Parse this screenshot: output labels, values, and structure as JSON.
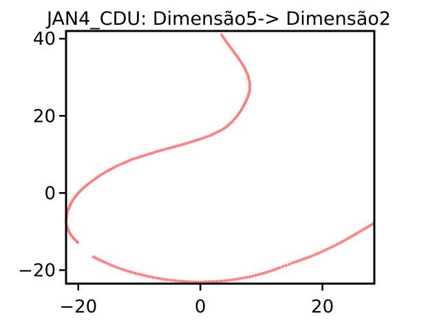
{
  "chart_data": {
    "type": "scatter",
    "title": "JAN4_CDU: Dimensão5-> Dimensão2",
    "xlabel": "",
    "ylabel": "",
    "xlim": [
      -22,
      28.5
    ],
    "ylim": [
      -23.5,
      42
    ],
    "xticks": [
      -20,
      0,
      20
    ],
    "yticks": [
      -20,
      0,
      20,
      40
    ],
    "xtick_labels": [
      "−20",
      "0",
      "20"
    ],
    "ytick_labels": [
      "−20",
      "0",
      "20",
      "40"
    ],
    "grid": false,
    "marker_color": "#ff4d4d",
    "series": [
      {
        "points": [
          [
            3.5,
            41
          ],
          [
            4.2,
            39.3
          ],
          [
            5.0,
            37.6
          ],
          [
            5.8,
            35.9
          ],
          [
            6.6,
            34.1
          ],
          [
            7.3,
            32.3
          ],
          [
            7.8,
            30.5
          ],
          [
            8.1,
            28.6
          ],
          [
            8.1,
            26.8
          ],
          [
            7.8,
            25.0
          ],
          [
            7.3,
            23.2
          ],
          [
            6.7,
            21.5
          ],
          [
            6.0,
            19.9
          ],
          [
            5.1,
            18.3
          ],
          [
            4.1,
            16.9
          ],
          [
            2.8,
            15.8
          ],
          [
            1.5,
            14.8
          ],
          [
            0.0,
            14.0
          ],
          [
            -1.4,
            13.3
          ],
          [
            -2.8,
            12.6
          ],
          [
            -4.2,
            12.0
          ],
          [
            -5.6,
            11.4
          ],
          [
            -7.0,
            10.8
          ],
          [
            -8.4,
            10.1
          ],
          [
            -9.8,
            9.4
          ],
          [
            -11.2,
            8.7
          ],
          [
            -12.5,
            7.8
          ],
          [
            -13.8,
            6.9
          ],
          [
            -15.0,
            5.9
          ],
          [
            -16.2,
            4.8
          ],
          [
            -17.3,
            3.6
          ],
          [
            -18.3,
            2.4
          ],
          [
            -19.3,
            1.1
          ],
          [
            -20.1,
            -0.2
          ],
          [
            -20.8,
            -1.6
          ],
          [
            -21.3,
            -3.0
          ],
          [
            -21.7,
            -4.5
          ],
          [
            -21.9,
            -6.0
          ],
          [
            -22.0,
            -7.5
          ],
          [
            -21.8,
            -9.0
          ],
          [
            -21.4,
            -10.4
          ],
          [
            -20.8,
            -11.7
          ],
          [
            -20.1,
            -12.8
          ],
          [
            -17.5,
            -16.6
          ],
          [
            -16.2,
            -17.6
          ],
          [
            -14.8,
            -18.6
          ],
          [
            -13.3,
            -19.5
          ],
          [
            -11.8,
            -20.3
          ],
          [
            -10.2,
            -21.0
          ],
          [
            -8.6,
            -21.6
          ],
          [
            -7.0,
            -22.1
          ],
          [
            -5.4,
            -22.5
          ],
          [
            -3.7,
            -22.8
          ],
          [
            -2.0,
            -23.0
          ],
          [
            -0.3,
            -23.1
          ],
          [
            1.4,
            -23.0
          ],
          [
            3.1,
            -22.9
          ],
          [
            4.8,
            -22.6
          ],
          [
            6.5,
            -22.2
          ],
          [
            8.2,
            -21.7
          ],
          [
            9.9,
            -21.0
          ],
          [
            11.6,
            -20.2
          ],
          [
            13.0,
            -19.4
          ],
          [
            15.0,
            -18.2
          ],
          [
            16.6,
            -17.3
          ],
          [
            18.2,
            -16.4
          ],
          [
            19.8,
            -15.3
          ],
          [
            21.3,
            -14.2
          ],
          [
            22.8,
            -13.0
          ],
          [
            24.2,
            -11.8
          ],
          [
            25.6,
            -10.5
          ],
          [
            27.0,
            -9.2
          ],
          [
            28.3,
            -8.0
          ]
        ]
      }
    ]
  }
}
